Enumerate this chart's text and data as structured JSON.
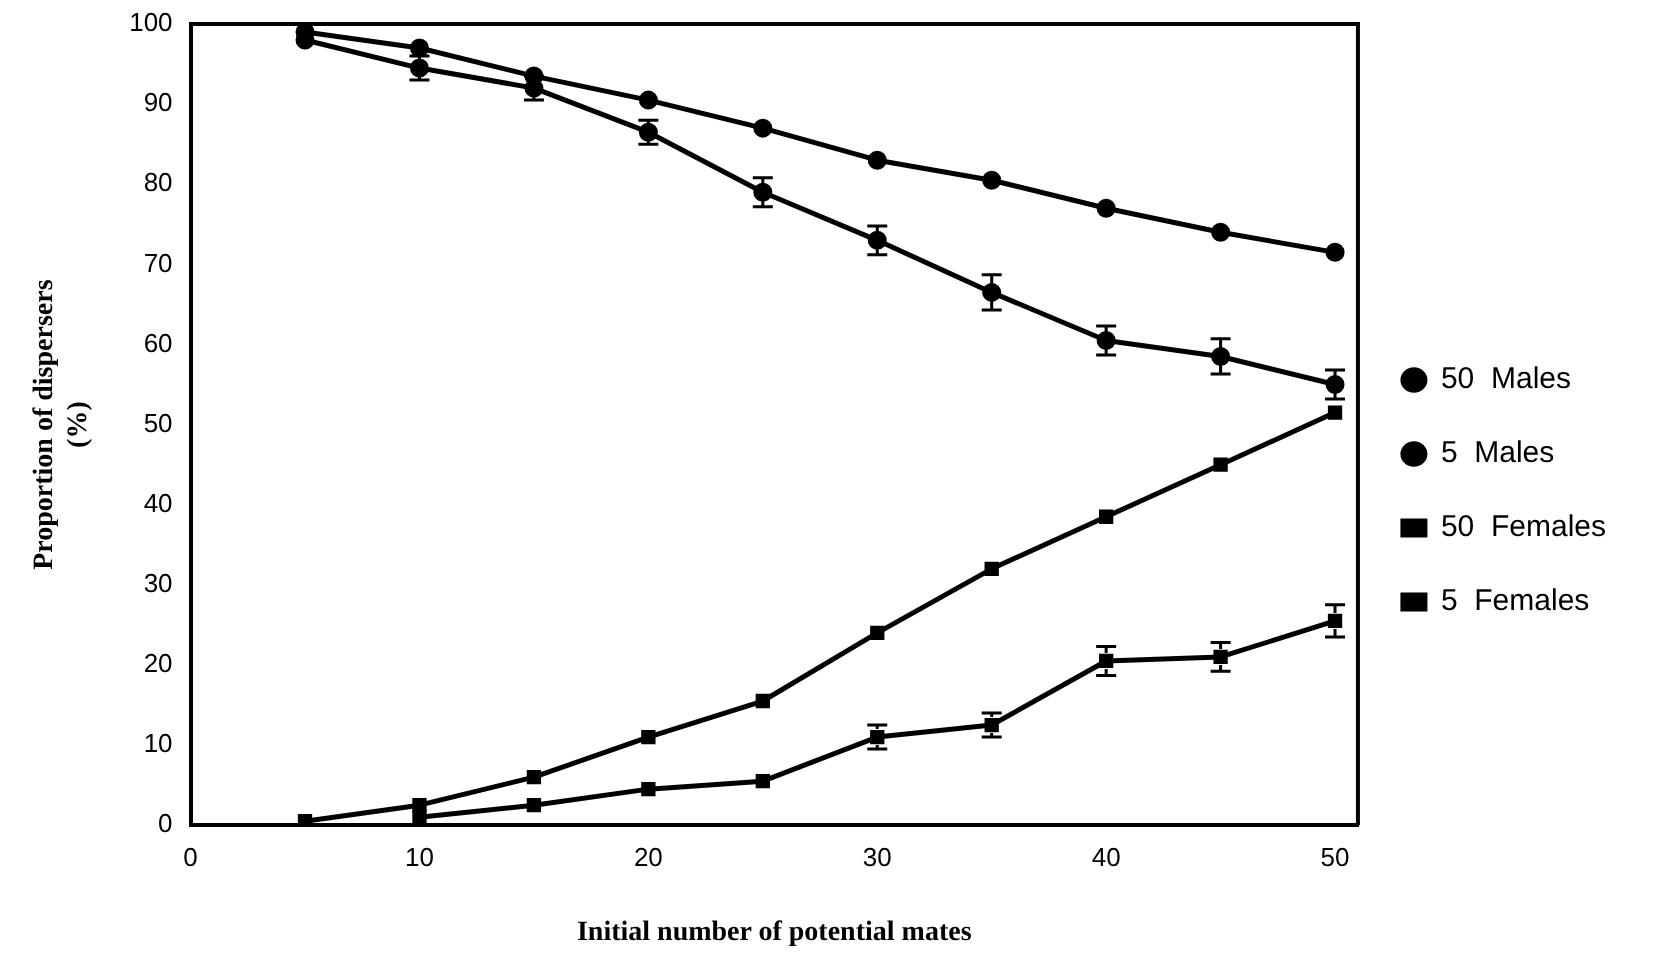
{
  "chart_data": {
    "type": "line",
    "xlabel": "Initial number of potential mates",
    "ylabel": "Proportion of dispersers\n(%)",
    "x": [
      5,
      10,
      15,
      20,
      25,
      30,
      35,
      40,
      45,
      50
    ],
    "xlim": [
      0,
      51
    ],
    "xticks": [
      0,
      10,
      20,
      30,
      40,
      50
    ],
    "ylim": [
      0,
      100
    ],
    "yticks": [
      0,
      10,
      20,
      30,
      40,
      50,
      60,
      70,
      80,
      90,
      100
    ],
    "grid": false,
    "legend": "right",
    "line_style": "solid",
    "series": [
      {
        "name": "50  Males",
        "color": "#000000",
        "marker": "circle",
        "values": [
          99,
          97,
          93.5,
          90.5,
          87,
          83,
          80.5,
          77,
          74,
          71.5
        ]
      },
      {
        "name": "5  Males",
        "color": "#000000",
        "marker": "circle",
        "values": [
          98,
          94.5,
          92,
          86.5,
          79,
          73,
          66.5,
          60.5,
          58.5,
          55
        ],
        "errors": [
          null,
          1.5,
          1.5,
          1.5,
          1.8,
          1.8,
          2.2,
          1.8,
          2.2,
          1.8
        ]
      },
      {
        "name": "50  Females",
        "color": "#000000",
        "marker": "square",
        "values": [
          0.5,
          2.5,
          6,
          11,
          15.5,
          24,
          32,
          38.5,
          45,
          51.5
        ]
      },
      {
        "name": "5  Females",
        "color": "#000000",
        "marker": "square",
        "values": [
          null,
          1,
          2.5,
          4.5,
          5.5,
          11,
          12.5,
          20.5,
          21,
          25.5
        ],
        "errors": [
          null,
          null,
          null,
          null,
          null,
          1.5,
          1.5,
          1.8,
          1.8,
          2
        ]
      }
    ]
  }
}
